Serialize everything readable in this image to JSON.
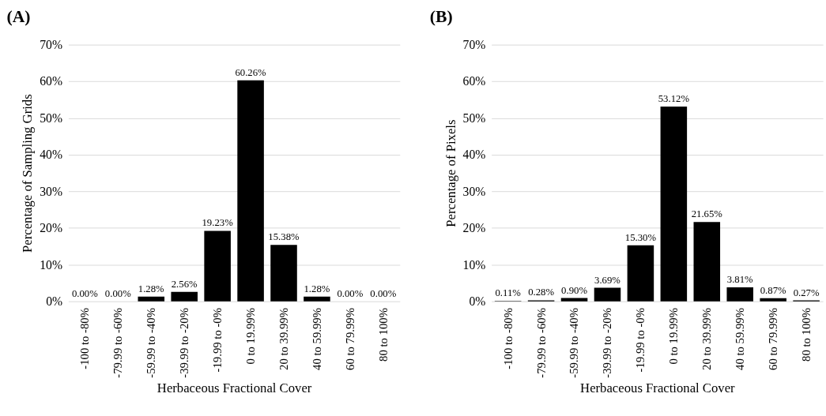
{
  "chart_data": [
    {
      "type": "bar",
      "title": "(A)",
      "xlabel": "Herbaceous Fractional Cover",
      "ylabel": "Percentage of Sampling Grids",
      "categories": [
        "-100 to -80%",
        "-79.99 to -60%",
        "-59.99 to -40%",
        "-39.99 to -20%",
        "-19.99 to -0%",
        "0 to 19.99%",
        "20 to 39.99%",
        "40 to 59.99%",
        "60 to 79.99%",
        "80 to 100%"
      ],
      "series": [
        {
          "color": "#000000",
          "values": [
            0,
            0,
            1.28,
            2.56,
            19.23,
            60.26,
            15.38,
            1.28,
            0,
            0
          ],
          "value_labels": [
            "0.00%",
            "0.00%",
            "1.28%",
            "2.56%",
            "19.23%",
            "60.26%",
            "15.38%",
            "1.28%",
            "0.00%",
            "0.00%"
          ]
        }
      ],
      "ylim": [
        0,
        70
      ],
      "yticks": [
        {
          "value": 0,
          "label": "0%"
        },
        {
          "value": 10,
          "label": "10%"
        },
        {
          "value": 20,
          "label": "20%"
        },
        {
          "value": 30,
          "label": "30%"
        },
        {
          "value": 40,
          "label": "40%"
        },
        {
          "value": 50,
          "label": "50%"
        },
        {
          "value": 60,
          "label": "60%"
        },
        {
          "value": 70,
          "label": "70%"
        }
      ],
      "grid": "y"
    },
    {
      "type": "bar",
      "title": "(B)",
      "xlabel": "Herbaceous Fractional Cover",
      "ylabel": "Percentage of Pixels",
      "categories": [
        "-100 to -80%",
        "-79.99 to -60%",
        "-59.99 to -40%",
        "-39.99 to -20%",
        "-19.99 to -0%",
        "0 to 19.99%",
        "20 to 39.99%",
        "40 to 59.99%",
        "60 to 79.99%",
        "80 to 100%"
      ],
      "series": [
        {
          "color": "#000000",
          "values": [
            0.11,
            0.28,
            0.9,
            3.69,
            15.3,
            53.12,
            21.65,
            3.81,
            0.87,
            0.27
          ],
          "value_labels": [
            "0.11%",
            "0.28%",
            "0.90%",
            "3.69%",
            "15.30%",
            "53.12%",
            "21.65%",
            "3.81%",
            "0.87%",
            "0.27%"
          ]
        }
      ],
      "ylim": [
        0,
        70
      ],
      "yticks": [
        {
          "value": 0,
          "label": "0%"
        },
        {
          "value": 10,
          "label": "10%"
        },
        {
          "value": 20,
          "label": "20%"
        },
        {
          "value": 30,
          "label": "30%"
        },
        {
          "value": 40,
          "label": "40%"
        },
        {
          "value": 50,
          "label": "50%"
        },
        {
          "value": 60,
          "label": "60%"
        },
        {
          "value": 70,
          "label": "70%"
        }
      ],
      "grid": "y"
    }
  ]
}
